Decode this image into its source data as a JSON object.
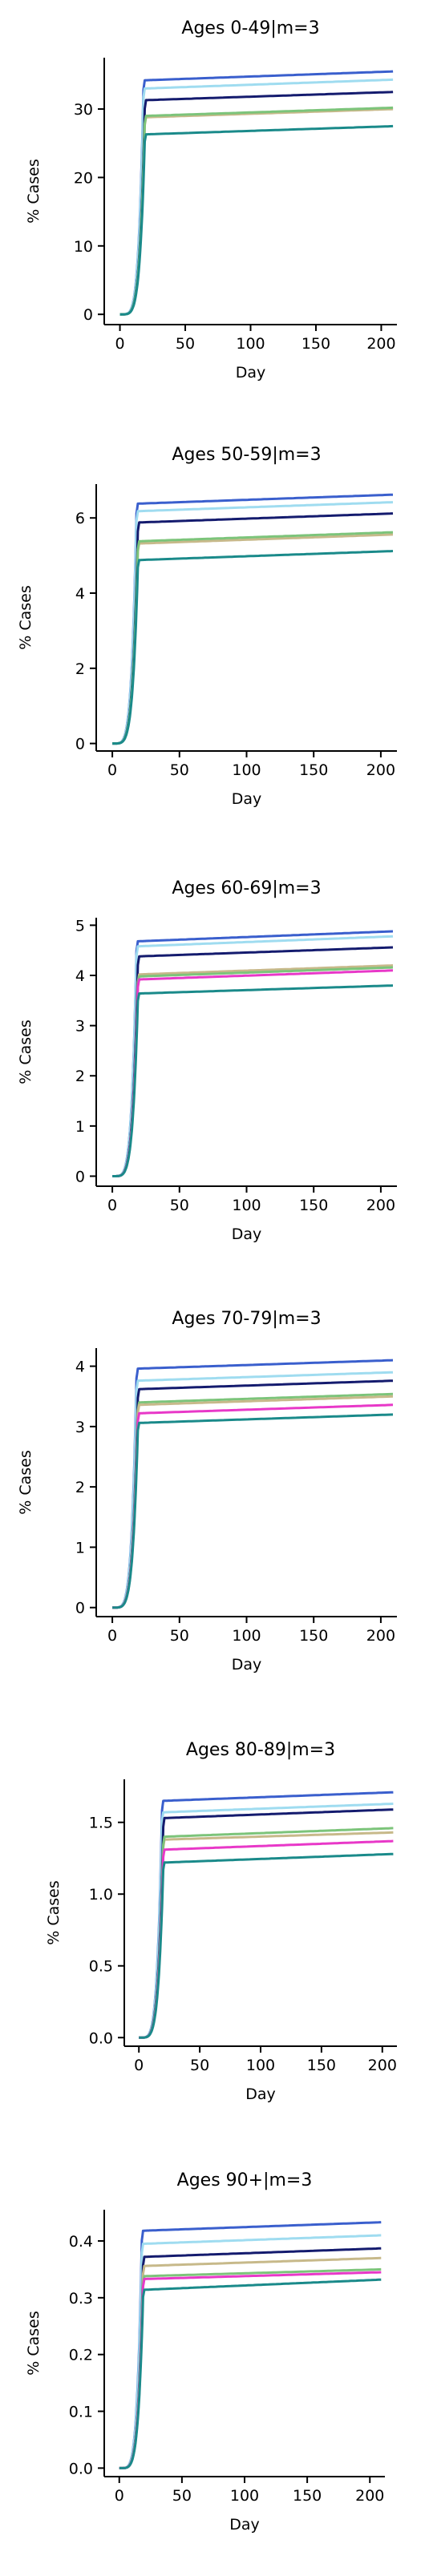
{
  "chart_data": [
    {
      "type": "line",
      "title": "Ages 0-49|m=3",
      "xlabel": "Day",
      "ylabel": "% Cases",
      "xlim": [
        -12,
        212
      ],
      "ylim": [
        -1.5,
        37.5
      ],
      "xticks": [
        0,
        50,
        100,
        150,
        200
      ],
      "yticks": [
        0,
        10,
        20,
        30
      ],
      "grid": false,
      "series": [
        {
          "color": "#3a5fcd",
          "start": 0,
          "takeoff": 18,
          "plateau": 34.2,
          "end": 35.5
        },
        {
          "color": "#9fdcf0",
          "start": 0,
          "takeoff": 18,
          "plateau": 33.0,
          "end": 34.3
        },
        {
          "color": "#141b6e",
          "start": 0,
          "takeoff": 19,
          "plateau": 31.3,
          "end": 32.5
        },
        {
          "color": "#c7b98a",
          "start": 0,
          "takeoff": 19,
          "plateau": 28.8,
          "end": 30.0
        },
        {
          "color": "#7cc47a",
          "start": 0,
          "takeoff": 19,
          "plateau": 29.0,
          "end": 30.2
        },
        {
          "color": "#1a8a8a",
          "start": 0,
          "takeoff": 19,
          "plateau": 26.3,
          "end": 27.5
        }
      ]
    },
    {
      "type": "line",
      "title": "Ages 50-59|m=3",
      "xlabel": "Day",
      "ylabel": "% Cases",
      "xlim": [
        -12,
        212
      ],
      "ylim": [
        -0.2,
        6.9
      ],
      "xticks": [
        0,
        50,
        100,
        150,
        200
      ],
      "yticks": [
        0,
        2,
        4,
        6
      ],
      "grid": false,
      "series": [
        {
          "color": "#3a5fcd",
          "start": 0,
          "takeoff": 18,
          "plateau": 6.38,
          "end": 6.62
        },
        {
          "color": "#9fdcf0",
          "start": 0,
          "takeoff": 18,
          "plateau": 6.18,
          "end": 6.42
        },
        {
          "color": "#141b6e",
          "start": 0,
          "takeoff": 19,
          "plateau": 5.88,
          "end": 6.12
        },
        {
          "color": "#c7b98a",
          "start": 0,
          "takeoff": 19,
          "plateau": 5.32,
          "end": 5.56
        },
        {
          "color": "#7cc47a",
          "start": 0,
          "takeoff": 19,
          "plateau": 5.38,
          "end": 5.62
        },
        {
          "color": "#1a8a8a",
          "start": 0,
          "takeoff": 19,
          "plateau": 4.88,
          "end": 5.12
        }
      ]
    },
    {
      "type": "line",
      "title": "Ages 60-69|m=3",
      "xlabel": "Day",
      "ylabel": "% Cases",
      "xlim": [
        -12,
        212
      ],
      "ylim": [
        -0.2,
        5.15
      ],
      "xticks": [
        0,
        50,
        100,
        150,
        200
      ],
      "yticks": [
        0,
        1,
        2,
        3,
        4,
        5
      ],
      "grid": false,
      "series": [
        {
          "color": "#3a5fcd",
          "start": 0,
          "takeoff": 18,
          "plateau": 4.68,
          "end": 4.88
        },
        {
          "color": "#9fdcf0",
          "start": 0,
          "takeoff": 18,
          "plateau": 4.58,
          "end": 4.78
        },
        {
          "color": "#141b6e",
          "start": 0,
          "takeoff": 19,
          "plateau": 4.38,
          "end": 4.56
        },
        {
          "color": "#c7b98a",
          "start": 0,
          "takeoff": 19,
          "plateau": 4.02,
          "end": 4.2
        },
        {
          "color": "#7cc47a",
          "start": 0,
          "takeoff": 19,
          "plateau": 3.98,
          "end": 4.16
        },
        {
          "color": "#e838c8",
          "start": 0,
          "takeoff": 19,
          "plateau": 3.92,
          "end": 4.1
        },
        {
          "color": "#1a8a8a",
          "start": 0,
          "takeoff": 19,
          "plateau": 3.64,
          "end": 3.8
        }
      ]
    },
    {
      "type": "line",
      "title": "Ages 70-79|m=3",
      "xlabel": "Day",
      "ylabel": "% Cases",
      "xlim": [
        -12,
        212
      ],
      "ylim": [
        -0.15,
        4.3
      ],
      "xticks": [
        0,
        50,
        100,
        150,
        200
      ],
      "yticks": [
        0,
        1,
        2,
        3,
        4
      ],
      "grid": false,
      "series": [
        {
          "color": "#3a5fcd",
          "start": 0,
          "takeoff": 18,
          "plateau": 3.96,
          "end": 4.1
        },
        {
          "color": "#9fdcf0",
          "start": 0,
          "takeoff": 18,
          "plateau": 3.76,
          "end": 3.9
        },
        {
          "color": "#141b6e",
          "start": 0,
          "takeoff": 19,
          "plateau": 3.62,
          "end": 3.76
        },
        {
          "color": "#7cc47a",
          "start": 0,
          "takeoff": 19,
          "plateau": 3.4,
          "end": 3.54
        },
        {
          "color": "#c7b98a",
          "start": 0,
          "takeoff": 19,
          "plateau": 3.36,
          "end": 3.5
        },
        {
          "color": "#e838c8",
          "start": 0,
          "takeoff": 19,
          "plateau": 3.22,
          "end": 3.36
        },
        {
          "color": "#1a8a8a",
          "start": 0,
          "takeoff": 19,
          "plateau": 3.06,
          "end": 3.2
        }
      ]
    },
    {
      "type": "line",
      "title": "Ages 80-89|m=3",
      "xlabel": "Day",
      "ylabel": "% Cases",
      "xlim": [
        -12,
        212
      ],
      "ylim": [
        -0.06,
        1.8
      ],
      "xticks": [
        0,
        50,
        100,
        150,
        200
      ],
      "yticks": [
        0.0,
        0.5,
        1.0,
        1.5
      ],
      "tick_format": 1,
      "grid": false,
      "series": [
        {
          "color": "#3a5fcd",
          "start": 0,
          "takeoff": 19,
          "plateau": 1.65,
          "end": 1.71
        },
        {
          "color": "#9fdcf0",
          "start": 0,
          "takeoff": 19,
          "plateau": 1.57,
          "end": 1.63
        },
        {
          "color": "#141b6e",
          "start": 0,
          "takeoff": 20,
          "plateau": 1.53,
          "end": 1.59
        },
        {
          "color": "#c7b98a",
          "start": 0,
          "takeoff": 20,
          "plateau": 1.38,
          "end": 1.43
        },
        {
          "color": "#7cc47a",
          "start": 0,
          "takeoff": 20,
          "plateau": 1.4,
          "end": 1.46
        },
        {
          "color": "#e838c8",
          "start": 0,
          "takeoff": 20,
          "plateau": 1.31,
          "end": 1.37
        },
        {
          "color": "#1a8a8a",
          "start": 0,
          "takeoff": 20,
          "plateau": 1.22,
          "end": 1.28
        }
      ]
    },
    {
      "type": "line",
      "title": "Ages 90+|m=3",
      "xlabel": "Day",
      "ylabel": "% Cases",
      "xlim": [
        -12,
        212
      ],
      "ylim": [
        -0.015,
        0.455
      ],
      "xticks": [
        0,
        50,
        100,
        150,
        200
      ],
      "yticks": [
        0.0,
        0.1,
        0.2,
        0.3,
        0.4
      ],
      "tick_format": 1,
      "grid": false,
      "series": [
        {
          "color": "#3a5fcd",
          "start": 0,
          "takeoff": 18,
          "plateau": 0.418,
          "end": 0.433
        },
        {
          "color": "#9fdcf0",
          "start": 0,
          "takeoff": 18,
          "plateau": 0.395,
          "end": 0.41
        },
        {
          "color": "#141b6e",
          "start": 0,
          "takeoff": 19,
          "plateau": 0.372,
          "end": 0.387
        },
        {
          "color": "#c7b98a",
          "start": 0,
          "takeoff": 19,
          "plateau": 0.356,
          "end": 0.37
        },
        {
          "color": "#7cc47a",
          "start": 0,
          "takeoff": 19,
          "plateau": 0.338,
          "end": 0.35
        },
        {
          "color": "#e838c8",
          "start": 0,
          "takeoff": 19,
          "plateau": 0.333,
          "end": 0.345
        },
        {
          "color": "#1a8a8a",
          "start": 0,
          "takeoff": 19,
          "plateau": 0.314,
          "end": 0.332
        }
      ]
    }
  ]
}
